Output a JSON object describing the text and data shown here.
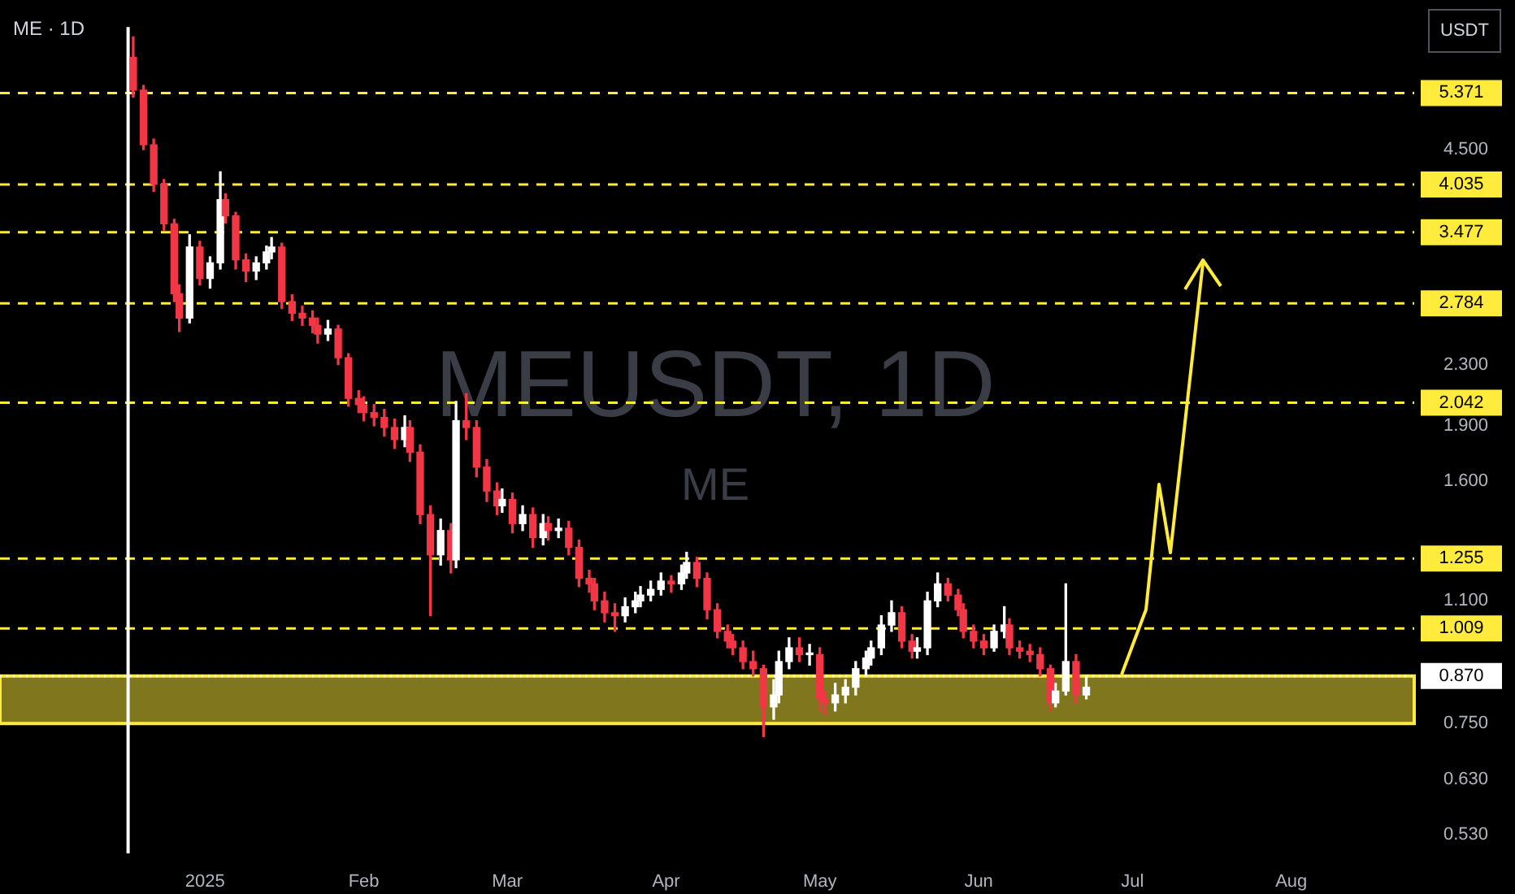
{
  "chart_data": {
    "type": "candlestick",
    "title": "ME · 1D",
    "ylabel": "USDT",
    "annotations": [
      "MEUSDT, 1D",
      "ME"
    ],
    "log": "y",
    "colors": [
      "#f23645",
      "#f23645",
      "#f23645",
      "#f23645",
      "#f23645",
      "#f23645",
      "#ffffff",
      "#f23645",
      "#ffffff",
      "#ffffff",
      "#f23645",
      "#f23645",
      "#f23645",
      "#ffffff",
      "#ffffff",
      "#ffffff",
      "#f23645",
      "#f23645",
      "#f23645",
      "#f23645",
      "#f23645",
      "#ffffff",
      "#f23645",
      "#f23645",
      "#f23645",
      "#f23645",
      "#f23645",
      "#f23645",
      "#f23645",
      "#ffffff",
      "#f23645",
      "#f23645",
      "#f23645",
      "#ffffff",
      "#f23645",
      "#ffffff",
      "#f23645",
      "#f23645",
      "#f23645",
      "#f23645",
      "#ffffff",
      "#f23645",
      "#ffffff",
      "#f23645",
      "#ffffff",
      "#f23645",
      "#ffffff",
      "#f23645",
      "#f23645",
      "#f23645",
      "#f23645",
      "#f23645",
      "#f23645",
      "#ffffff",
      "#ffffff",
      "#ffffff",
      "#ffffff",
      "#ffffff",
      "#f23645",
      "#ffffff",
      "#ffffff",
      "#f23645",
      "#f23645",
      "#f23645",
      "#f23645",
      "#f23645",
      "#f23645",
      "#f23645",
      "#f23645",
      "#ffffff",
      "#ffffff",
      "#ffffff",
      "#f23645",
      "#ffffff",
      "#f23645",
      "#f23645",
      "#ffffff",
      "#ffffff",
      "#ffffff",
      "#ffffff",
      "#ffffff",
      "#ffffff",
      "#ffffff",
      "#f23645",
      "#f23645",
      "#ffffff",
      "#ffffff",
      "#ffffff",
      "#f23645",
      "#f23645",
      "#f23645",
      "#f23645",
      "#f23645",
      "#ffffff",
      "#ffffff",
      "#f23645",
      "#f23645",
      "#f23645",
      "#f23645",
      "#f23645",
      "#ffffff",
      "#ffffff",
      "#f23645",
      "#ffffff"
    ],
    "xlim": [
      "2024-11-22",
      "2025-08-25"
    ],
    "xticks": [
      {
        "value": "2025-01-01",
        "label": "2025"
      },
      {
        "value": "2025-02-01",
        "label": "Feb"
      },
      {
        "value": "2025-03-01",
        "label": "Mar"
      },
      {
        "value": "2025-04-01",
        "label": "Apr"
      },
      {
        "value": "2025-05-01",
        "label": "May"
      },
      {
        "value": "2025-06-01",
        "label": "Jun"
      },
      {
        "value": "2025-07-01",
        "label": "Jul"
      },
      {
        "value": "2025-08-01",
        "label": "Aug"
      }
    ],
    "ylim": [
      0.5,
      6.6
    ],
    "yticks": [
      {
        "value": 4.5,
        "label": "4.500"
      },
      {
        "value": 2.3,
        "label": "2.300"
      },
      {
        "value": 1.9,
        "label": "1.900"
      },
      {
        "value": 1.6,
        "label": "1.600"
      },
      {
        "value": 1.1,
        "label": "1.100"
      },
      {
        "value": 0.75,
        "label": "0.750"
      },
      {
        "value": 0.63,
        "label": "0.630"
      },
      {
        "value": 0.53,
        "label": "0.530"
      }
    ],
    "ref_lines": [
      {
        "axis": "y",
        "value": 5.371,
        "label": "5.371",
        "color": "#ffeb3b",
        "line_style": "dashed"
      },
      {
        "axis": "y",
        "value": 4.035,
        "label": "4.035",
        "color": "#ffeb3b",
        "line_style": "dashed"
      },
      {
        "axis": "y",
        "value": 3.477,
        "label": "3.477",
        "color": "#ffeb3b",
        "line_style": "dashed"
      },
      {
        "axis": "y",
        "value": 2.784,
        "label": "2.784",
        "color": "#ffeb3b",
        "line_style": "dashed"
      },
      {
        "axis": "y",
        "value": 2.042,
        "label": "2.042",
        "color": "#ffeb3b",
        "line_style": "dashed"
      },
      {
        "axis": "y",
        "value": 1.255,
        "label": "1.255",
        "color": "#ffeb3b",
        "line_style": "dashed"
      },
      {
        "axis": "y",
        "value": 1.009,
        "label": "1.009",
        "color": "#ffeb3b",
        "line_style": "dashed"
      },
      {
        "axis": "y",
        "value": 0.87,
        "label": "0.870",
        "color": "#ffffff",
        "line_style": "dotted"
      },
      {
        "axis": "x",
        "value": "2024-12-17",
        "color": "#ffffff",
        "line_style": "solid"
      }
    ],
    "bands": [
      {
        "axis": "y",
        "from": 0.75,
        "to": 0.87,
        "color": "#ffeb3b"
      }
    ],
    "x": [
      "2024-12-18",
      "2024-12-20",
      "2024-12-22",
      "2024-12-24",
      "2024-12-26",
      "2024-12-27",
      "2024-12-29",
      "2024-12-31",
      "2025-01-02",
      "2025-01-04",
      "2025-01-05",
      "2025-01-07",
      "2025-01-09",
      "2025-01-11",
      "2025-01-13",
      "2025-01-14",
      "2025-01-16",
      "2025-01-18",
      "2025-01-20",
      "2025-01-22",
      "2025-01-23",
      "2025-01-25",
      "2025-01-27",
      "2025-01-29",
      "2025-01-31",
      "2025-02-01",
      "2025-02-03",
      "2025-02-05",
      "2025-02-07",
      "2025-02-09",
      "2025-02-10",
      "2025-02-12",
      "2025-02-14",
      "2025-02-16",
      "2025-02-18",
      "2025-02-19",
      "2025-02-21",
      "2025-02-23",
      "2025-02-25",
      "2025-02-27",
      "2025-02-28",
      "2025-03-02",
      "2025-03-04",
      "2025-03-06",
      "2025-03-08",
      "2025-03-09",
      "2025-03-11",
      "2025-03-13",
      "2025-03-15",
      "2025-03-17",
      "2025-03-18",
      "2025-03-20",
      "2025-03-22",
      "2025-03-24",
      "2025-03-26",
      "2025-03-27",
      "2025-03-29",
      "2025-03-31",
      "2025-04-02",
      "2025-04-04",
      "2025-04-05",
      "2025-04-07",
      "2025-04-09",
      "2025-04-11",
      "2025-04-13",
      "2025-04-14",
      "2025-04-16",
      "2025-04-18",
      "2025-04-20",
      "2025-04-22",
      "2025-04-23",
      "2025-04-25",
      "2025-04-27",
      "2025-04-29",
      "2025-05-01",
      "2025-05-02",
      "2025-05-04",
      "2025-05-06",
      "2025-05-08",
      "2025-05-10",
      "2025-05-11",
      "2025-05-13",
      "2025-05-15",
      "2025-05-17",
      "2025-05-19",
      "2025-05-20",
      "2025-05-22",
      "2025-05-24",
      "2025-05-26",
      "2025-05-28",
      "2025-05-29",
      "2025-05-31",
      "2025-06-02",
      "2025-06-04",
      "2025-06-06",
      "2025-06-07",
      "2025-06-09",
      "2025-06-11",
      "2025-06-13",
      "2025-06-15",
      "2025-06-16",
      "2025-06-18",
      "2025-06-20",
      "2025-06-22"
    ],
    "ohlc": [
      [
        6.0,
        6.4,
        5.3,
        5.42
      ],
      [
        5.42,
        5.5,
        4.5,
        4.57
      ],
      [
        4.57,
        4.65,
        3.95,
        4.04
      ],
      [
        4.04,
        4.1,
        3.5,
        3.57
      ],
      [
        3.57,
        3.62,
        2.8,
        2.87
      ],
      [
        2.87,
        2.95,
        2.55,
        2.66
      ],
      [
        2.66,
        3.45,
        2.62,
        3.32
      ],
      [
        3.32,
        3.38,
        2.95,
        3.01
      ],
      [
        3.01,
        3.22,
        2.92,
        3.16
      ],
      [
        3.16,
        4.2,
        3.1,
        3.85
      ],
      [
        3.85,
        3.92,
        3.58,
        3.66
      ],
      [
        3.66,
        3.7,
        3.1,
        3.19
      ],
      [
        3.19,
        3.25,
        2.98,
        3.08
      ],
      [
        3.08,
        3.22,
        3.0,
        3.16
      ],
      [
        3.16,
        3.33,
        3.1,
        3.27
      ],
      [
        3.27,
        3.42,
        3.2,
        3.32
      ],
      [
        3.32,
        3.36,
        2.74,
        2.8
      ],
      [
        2.8,
        2.86,
        2.64,
        2.7
      ],
      [
        2.7,
        2.76,
        2.6,
        2.66
      ],
      [
        2.66,
        2.72,
        2.54,
        2.6
      ],
      [
        2.6,
        2.66,
        2.46,
        2.53
      ],
      [
        2.53,
        2.64,
        2.48,
        2.57
      ],
      [
        2.57,
        2.6,
        2.3,
        2.35
      ],
      [
        2.35,
        2.38,
        2.02,
        2.07
      ],
      [
        2.07,
        2.12,
        1.98,
        2.03
      ],
      [
        2.03,
        2.08,
        1.93,
        1.98
      ],
      [
        1.98,
        2.03,
        1.9,
        1.95
      ],
      [
        1.95,
        2.0,
        1.84,
        1.89
      ],
      [
        1.89,
        1.94,
        1.77,
        1.82
      ],
      [
        1.82,
        1.96,
        1.78,
        1.89
      ],
      [
        1.89,
        1.93,
        1.7,
        1.75
      ],
      [
        1.75,
        1.79,
        1.4,
        1.44
      ],
      [
        1.44,
        1.48,
        1.05,
        1.27
      ],
      [
        1.27,
        1.42,
        1.23,
        1.37
      ],
      [
        1.37,
        1.4,
        1.2,
        1.25
      ],
      [
        1.25,
        2.05,
        1.22,
        1.93
      ],
      [
        1.93,
        2.1,
        1.82,
        1.89
      ],
      [
        1.89,
        1.93,
        1.62,
        1.67
      ],
      [
        1.67,
        1.71,
        1.5,
        1.55
      ],
      [
        1.55,
        1.59,
        1.44,
        1.48
      ],
      [
        1.48,
        1.56,
        1.45,
        1.51
      ],
      [
        1.51,
        1.54,
        1.36,
        1.4
      ],
      [
        1.4,
        1.48,
        1.37,
        1.44
      ],
      [
        1.44,
        1.47,
        1.3,
        1.34
      ],
      [
        1.34,
        1.44,
        1.31,
        1.4
      ],
      [
        1.4,
        1.43,
        1.33,
        1.37
      ],
      [
        1.37,
        1.42,
        1.34,
        1.38
      ],
      [
        1.38,
        1.41,
        1.27,
        1.3
      ],
      [
        1.3,
        1.33,
        1.15,
        1.18
      ],
      [
        1.18,
        1.21,
        1.13,
        1.16
      ],
      [
        1.16,
        1.18,
        1.07,
        1.1
      ],
      [
        1.1,
        1.13,
        1.03,
        1.06
      ],
      [
        1.06,
        1.09,
        1.0,
        1.05
      ],
      [
        1.05,
        1.11,
        1.03,
        1.08
      ],
      [
        1.08,
        1.13,
        1.06,
        1.1
      ],
      [
        1.1,
        1.15,
        1.08,
        1.12
      ],
      [
        1.12,
        1.17,
        1.1,
        1.14
      ],
      [
        1.14,
        1.2,
        1.12,
        1.17
      ],
      [
        1.17,
        1.19,
        1.13,
        1.16
      ],
      [
        1.16,
        1.23,
        1.14,
        1.2
      ],
      [
        1.2,
        1.28,
        1.18,
        1.24
      ],
      [
        1.24,
        1.26,
        1.15,
        1.18
      ],
      [
        1.18,
        1.2,
        1.04,
        1.07
      ],
      [
        1.07,
        1.09,
        0.98,
        1.0
      ],
      [
        1.0,
        1.02,
        0.95,
        0.97
      ],
      [
        0.97,
        0.99,
        0.93,
        0.95
      ],
      [
        0.95,
        0.97,
        0.89,
        0.91
      ],
      [
        0.91,
        0.94,
        0.87,
        0.89
      ],
      [
        0.89,
        0.9,
        0.72,
        0.79
      ],
      [
        0.79,
        0.86,
        0.76,
        0.82
      ],
      [
        0.82,
        0.94,
        0.8,
        0.91
      ],
      [
        0.91,
        0.98,
        0.89,
        0.95
      ],
      [
        0.95,
        0.98,
        0.91,
        0.93
      ],
      [
        0.93,
        0.96,
        0.9,
        0.93
      ],
      [
        0.93,
        0.95,
        0.78,
        0.81
      ],
      [
        0.81,
        0.83,
        0.77,
        0.8
      ],
      [
        0.8,
        0.85,
        0.78,
        0.82
      ],
      [
        0.82,
        0.86,
        0.8,
        0.84
      ],
      [
        0.84,
        0.91,
        0.82,
        0.89
      ],
      [
        0.89,
        0.94,
        0.87,
        0.92
      ],
      [
        0.92,
        0.97,
        0.9,
        0.95
      ],
      [
        0.95,
        1.05,
        0.93,
        1.02
      ],
      [
        1.02,
        1.1,
        1.0,
        1.06
      ],
      [
        1.06,
        1.08,
        0.95,
        0.97
      ],
      [
        0.97,
        0.99,
        0.92,
        0.94
      ],
      [
        0.94,
        0.98,
        0.92,
        0.95
      ],
      [
        0.95,
        1.13,
        0.93,
        1.1
      ],
      [
        1.1,
        1.2,
        1.08,
        1.16
      ],
      [
        1.16,
        1.18,
        1.1,
        1.12
      ],
      [
        1.12,
        1.14,
        1.05,
        1.07
      ],
      [
        1.07,
        1.09,
        0.98,
        1.0
      ],
      [
        1.0,
        1.02,
        0.95,
        0.97
      ],
      [
        0.97,
        0.99,
        0.93,
        0.95
      ],
      [
        0.95,
        1.02,
        0.94,
        1.0
      ],
      [
        1.0,
        1.08,
        0.98,
        1.02
      ],
      [
        1.02,
        1.04,
        0.93,
        0.95
      ],
      [
        0.95,
        0.97,
        0.92,
        0.94
      ],
      [
        0.94,
        0.96,
        0.91,
        0.93
      ],
      [
        0.93,
        0.95,
        0.87,
        0.89
      ],
      [
        0.89,
        0.9,
        0.78,
        0.8
      ],
      [
        0.8,
        0.85,
        0.79,
        0.83
      ],
      [
        0.83,
        1.16,
        0.82,
        0.91
      ],
      [
        0.91,
        0.93,
        0.8,
        0.82
      ],
      [
        0.82,
        0.87,
        0.81,
        0.84
      ]
    ]
  }
}
